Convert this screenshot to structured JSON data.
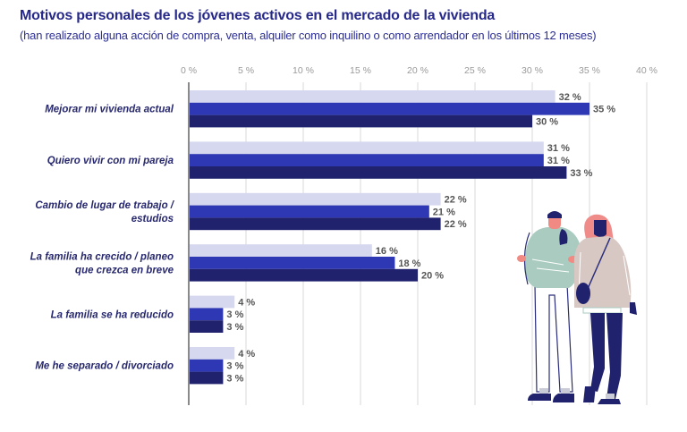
{
  "header": {
    "title": "Motivos personales de los jóvenes activos en el mercado de la vivienda",
    "subtitle": "(han realizado alguna acción de compra, venta, alquiler como inquilino o como arrendador en los últimos 12 meses)"
  },
  "chart_data": {
    "type": "bar",
    "orientation": "horizontal",
    "title": "Motivos personales de los jóvenes activos en el mercado de la vivienda",
    "subtitle": "(han realizado alguna acción de compra, venta, alquiler como inquilino o como arrendador en los últimos 12 meses)",
    "xlabel": "",
    "ylabel": "",
    "xlim": [
      0,
      40
    ],
    "x_ticks": [
      0,
      5,
      10,
      15,
      20,
      25,
      30,
      35,
      40
    ],
    "x_tick_labels": [
      "0 %",
      "5 %",
      "10 %",
      "15 %",
      "20 %",
      "25 %",
      "30 %",
      "35 %",
      "40 %"
    ],
    "tick_position": "top",
    "grid": true,
    "legend": "none",
    "value_suffix": " %",
    "categories": [
      [
        "Mejorar mi vivienda actual"
      ],
      [
        "Quiero vivir con mi pareja"
      ],
      [
        "Cambio de lugar de trabajo /",
        "estudios"
      ],
      [
        "La familia ha crecido / planeo",
        "que crezca en breve"
      ],
      [
        "La familia se ha reducido"
      ],
      [
        "Me he separado / divorciado"
      ]
    ],
    "series": [
      {
        "name": "Serie 1",
        "color": "#d6d8ef",
        "values": [
          32,
          31,
          22,
          16,
          4,
          4
        ]
      },
      {
        "name": "Serie 2",
        "color": "#2e38b4",
        "values": [
          35,
          31,
          21,
          18,
          3,
          3
        ]
      },
      {
        "name": "Serie 3",
        "color": "#20226e",
        "values": [
          30,
          33,
          22,
          20,
          3,
          3
        ]
      }
    ]
  },
  "colors": {
    "title": "#26288a",
    "axis": "#9a9a9a",
    "grid": "#d9d9d9",
    "category_text": "#27286e",
    "value_text": "#555555"
  },
  "illustration": {
    "description": "young-couple-illustration"
  }
}
